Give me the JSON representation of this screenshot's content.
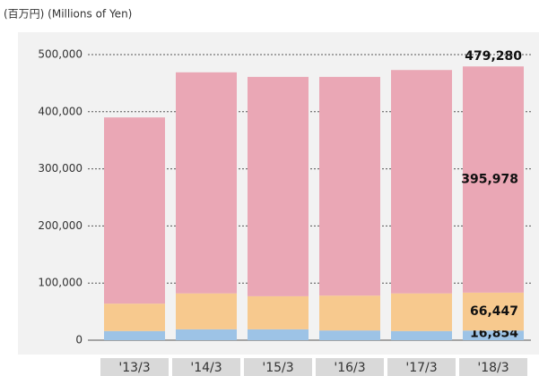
{
  "chart_data": {
    "type": "stacked_bar",
    "unit_label": "(百万円) (Millions of Yen)",
    "categories": [
      "'13/3",
      "'14/3",
      "'15/3",
      "'16/3",
      "'17/3",
      "'18/3"
    ],
    "series": [
      {
        "color": "#9dc3e6",
        "values": [
          16000,
          19000,
          19000,
          17000,
          16000,
          16854
        ],
        "value_labels": [
          null,
          null,
          null,
          null,
          null,
          "16,854"
        ]
      },
      {
        "color": "#f7c98e",
        "values": [
          48000,
          63000,
          58000,
          61000,
          66000,
          66447
        ],
        "value_labels": [
          null,
          null,
          null,
          null,
          null,
          "66,447"
        ]
      },
      {
        "color": "#eaa7b5",
        "values": [
          326000,
          387000,
          384000,
          383000,
          391000,
          395978
        ],
        "value_labels": [
          null,
          null,
          null,
          null,
          null,
          "395,978"
        ]
      }
    ],
    "total_label": "479,280",
    "ylim": [
      0,
      500000
    ],
    "yticks": [
      0,
      {
        "value": 100000,
        "label": "100,000"
      },
      {
        "value": 200000,
        "label": "200,000"
      },
      {
        "value": 300000,
        "label": "300,000"
      },
      {
        "value": 400000,
        "label": "400,000"
      },
      {
        "value": 500000,
        "label": "500,000"
      }
    ],
    "grid": true
  }
}
